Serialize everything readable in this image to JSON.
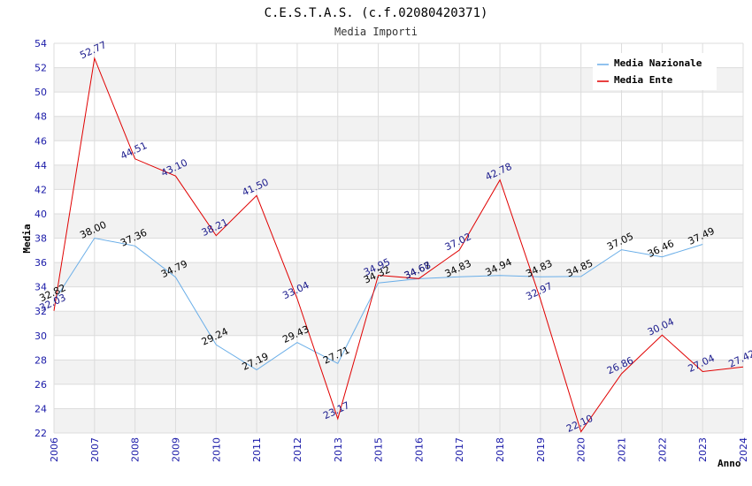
{
  "chart_data": {
    "type": "line",
    "title": "C.E.S.T.A.S. (c.f.02080420371)",
    "subtitle": "Media Importi",
    "xlabel": "Anno",
    "ylabel": "Media",
    "ylim": [
      22,
      54
    ],
    "ytick_step": 2,
    "grid": true,
    "legend_position": "top-right",
    "categories": [
      "2006",
      "2007",
      "2008",
      "2009",
      "2010",
      "2011",
      "2012",
      "2013",
      "2015",
      "2016",
      "2017",
      "2018",
      "2019",
      "2020",
      "2021",
      "2022",
      "2023",
      "2024"
    ],
    "series": [
      {
        "name": "Media Nazionale",
        "color": "#6aaee8",
        "label_color": "#000000",
        "values": [
          32.82,
          38.0,
          37.36,
          34.79,
          29.24,
          27.19,
          29.43,
          27.71,
          34.32,
          34.67,
          34.83,
          34.94,
          34.83,
          34.85,
          37.05,
          36.46,
          37.49,
          null
        ],
        "labels": [
          "32.82",
          "38.00",
          "37.36",
          "34.79",
          "29.24",
          "27.19",
          "29.43",
          "27.71",
          "34.32",
          "34.67",
          "34.83",
          "34.94",
          "34.83",
          "34.85",
          "37.05",
          "36.46",
          "37.49",
          ""
        ]
      },
      {
        "name": "Media Ente",
        "color": "#e00000",
        "label_color": "#1a1a8c",
        "values": [
          32.03,
          52.77,
          44.51,
          43.1,
          38.21,
          41.5,
          33.04,
          23.17,
          34.95,
          34.68,
          37.02,
          42.78,
          32.97,
          22.1,
          26.86,
          30.04,
          27.04,
          27.42
        ],
        "labels": [
          "32.03",
          "52.77",
          "44.51",
          "43.10",
          "38.21",
          "41.50",
          "33.04",
          "23.17",
          "34.95",
          "34.68",
          "37.02",
          "42.78",
          "32.97",
          "22.10",
          "26.86",
          "30.04",
          "27.04",
          "27.42"
        ]
      }
    ]
  }
}
